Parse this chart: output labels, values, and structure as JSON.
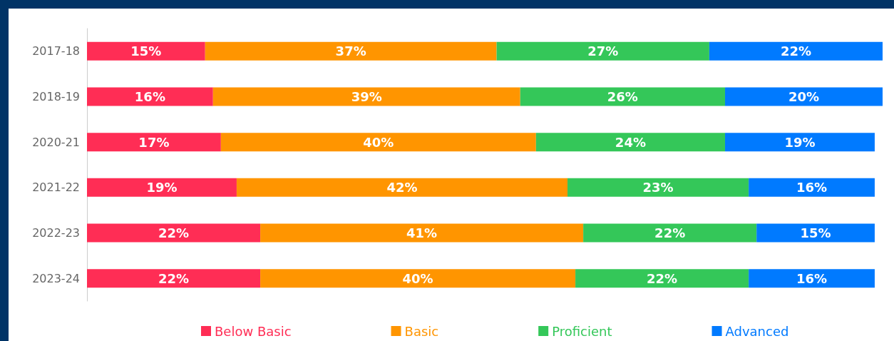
{
  "chart_data": {
    "type": "bar",
    "orientation": "horizontal",
    "stacked": true,
    "legend": "bottom",
    "categories": [
      "2017-18",
      "2018-19",
      "2020-21",
      "2021-22",
      "2022-23",
      "2023-24"
    ],
    "series": [
      {
        "name": "Below Basic",
        "color": "#ff2d55",
        "values": [
          15,
          16,
          17,
          19,
          22,
          22
        ],
        "value_labels": [
          "15%",
          "16%",
          "17%",
          "19%",
          "22%",
          "22%"
        ]
      },
      {
        "name": "Basic",
        "color": "#ff9500",
        "values": [
          37,
          39,
          40,
          42,
          41,
          40
        ],
        "value_labels": [
          "37%",
          "39%",
          "40%",
          "42%",
          "41%",
          "40%"
        ]
      },
      {
        "name": "Proficient",
        "color": "#34c759",
        "values": [
          27,
          26,
          24,
          23,
          22,
          22
        ],
        "value_labels": [
          "27%",
          "26%",
          "24%",
          "23%",
          "22%",
          "22%"
        ]
      },
      {
        "name": "Advanced",
        "color": "#007aff",
        "values": [
          22,
          20,
          19,
          16,
          15,
          16
        ],
        "value_labels": [
          "22%",
          "20%",
          "19%",
          "16%",
          "15%",
          "16%"
        ]
      }
    ]
  }
}
